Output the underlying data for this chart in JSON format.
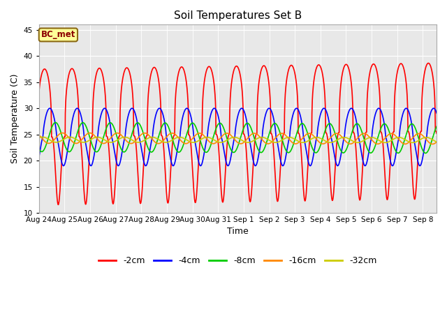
{
  "title": "Soil Temperatures Set B",
  "xlabel": "Time",
  "ylabel": "Soil Temperature (C)",
  "ylim": [
    10,
    46
  ],
  "yticks": [
    10,
    15,
    20,
    25,
    30,
    35,
    40,
    45
  ],
  "colors": {
    "-2cm": "#ff0000",
    "-4cm": "#0000ff",
    "-8cm": "#00cc00",
    "-16cm": "#ff8800",
    "-32cm": "#cccc00"
  },
  "legend_label": "BC_met",
  "n_days": 15,
  "points_per_day": 144,
  "series": {
    "-2cm": {
      "mean": 24.5,
      "amp": 13.0,
      "phase": -0.3,
      "trend": 0.08,
      "sharpness": 3.0
    },
    "-4cm": {
      "mean": 24.5,
      "amp": 5.5,
      "phase": 0.9,
      "trend": 0.0,
      "sharpness": 1.5
    },
    "-8cm": {
      "mean": 24.5,
      "amp": 2.8,
      "phase": 2.2,
      "trend": -0.02,
      "sharpness": 1.0
    },
    "-16cm": {
      "mean": 24.3,
      "amp": 1.0,
      "phase": 3.8,
      "trend": -0.01,
      "sharpness": 1.0
    },
    "-32cm": {
      "mean": 24.0,
      "amp": 0.5,
      "phase": 5.5,
      "trend": -0.005,
      "sharpness": 1.0
    }
  },
  "plot_bg_color": "#e8e8e8",
  "tick_dates": [
    "Aug 24",
    "Aug 25",
    "Aug 26",
    "Aug 27",
    "Aug 28",
    "Aug 29",
    "Aug 30",
    "Aug 31",
    "Sep 1",
    "Sep 2",
    "Sep 3",
    "Sep 4",
    "Sep 5",
    "Sep 6",
    "Sep 7",
    "Sep 8"
  ]
}
